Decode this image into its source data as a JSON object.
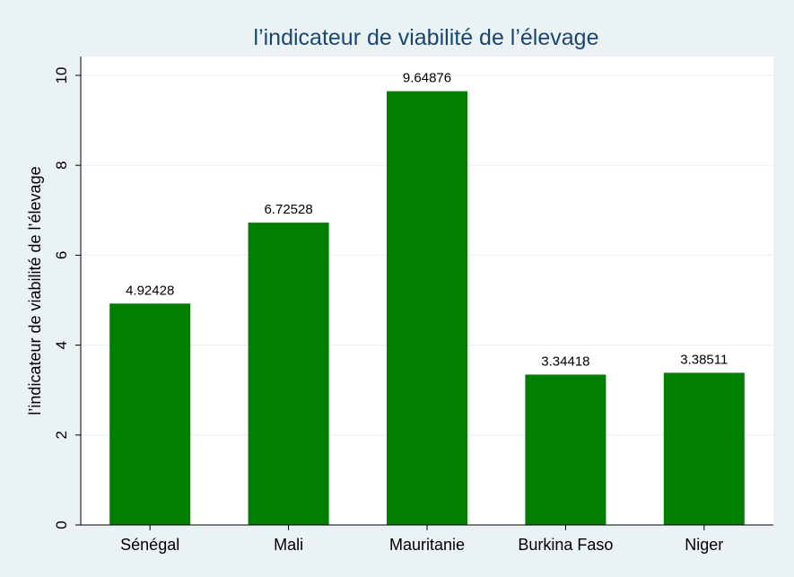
{
  "chart_data": {
    "type": "bar",
    "title": "l’indicateur de viabilité de l’élevage",
    "xlabel": "",
    "ylabel": "l’indicateur de viabilité de l’élevage",
    "categories": [
      "Sénégal",
      "Mali",
      "Mauritanie",
      "Burkina Faso",
      "Niger"
    ],
    "values": [
      4.92428,
      6.72528,
      9.64876,
      3.34418,
      3.38511
    ],
    "value_labels": [
      "4.92428",
      "6.72528",
      "9.64876",
      "3.34418",
      "3.38511"
    ],
    "ylim": [
      0,
      10
    ],
    "yticks": [
      0,
      2,
      4,
      6,
      8,
      10
    ],
    "ytick_labels": [
      "0",
      "2",
      "4",
      "6",
      "8",
      "10"
    ],
    "grid": true,
    "legend": "none",
    "colors": {
      "bar": "#007f00",
      "plot_background": "#ffffff",
      "page_background": "#eaf2f3",
      "title": "#1a476f",
      "grid": "#eaf2f3"
    }
  }
}
